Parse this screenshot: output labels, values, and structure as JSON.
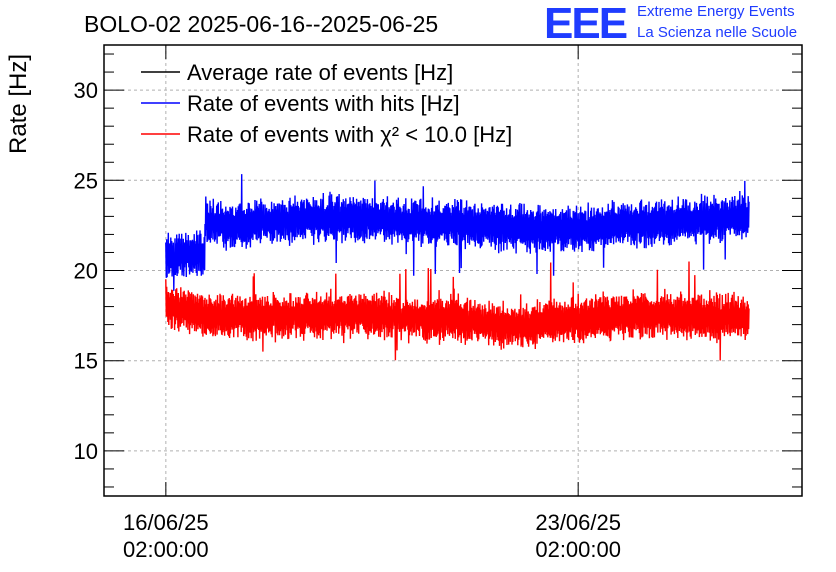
{
  "chart_data": {
    "type": "line",
    "title": "BOLO-02 2025-06-16--2025-06-25",
    "ylabel": "Rate [Hz]",
    "xlabel": "",
    "ylim": [
      7.5,
      32.5
    ],
    "yticks": [
      10,
      15,
      20,
      25,
      30
    ],
    "xticks": [
      {
        "date": "16/06/25",
        "time": "02:00:00",
        "x_days": 0
      },
      {
        "date": "23/06/25",
        "time": "02:00:00",
        "x_days": 7
      }
    ],
    "xlim_days": [
      -1.05,
      10.8
    ],
    "grid": true,
    "legend_position": "top-left",
    "series": [
      {
        "name": "Average rate of events [Hz]",
        "color": "#000000",
        "x_days": [],
        "values": []
      },
      {
        "name": "Rate of events with hits [Hz]",
        "color": "#0000ff",
        "x_days": [
          0.0,
          0.5,
          0.66,
          0.67,
          1.0,
          2.0,
          3.0,
          4.0,
          5.0,
          6.0,
          7.0,
          8.0,
          9.0,
          9.9
        ],
        "values": [
          20.8,
          20.9,
          21.0,
          22.8,
          22.5,
          22.8,
          22.9,
          22.7,
          22.6,
          22.3,
          22.3,
          22.6,
          22.8,
          23.0
        ]
      },
      {
        "name": "Rate of events with χ² < 10.0 [Hz]",
        "color": "#ff0000",
        "x_days": [
          0.0,
          0.5,
          1.0,
          2.0,
          3.0,
          4.0,
          5.0,
          6.0,
          7.0,
          8.0,
          9.0,
          9.9
        ],
        "values": [
          18.1,
          17.6,
          17.5,
          17.4,
          17.6,
          17.4,
          17.3,
          16.9,
          17.3,
          17.6,
          17.5,
          17.4
        ]
      }
    ]
  },
  "logo": {
    "mark": "EEE",
    "line1": "Extreme Energy Events",
    "line2": "La Scienza nelle Scuole",
    "color": "#1f3cff"
  }
}
